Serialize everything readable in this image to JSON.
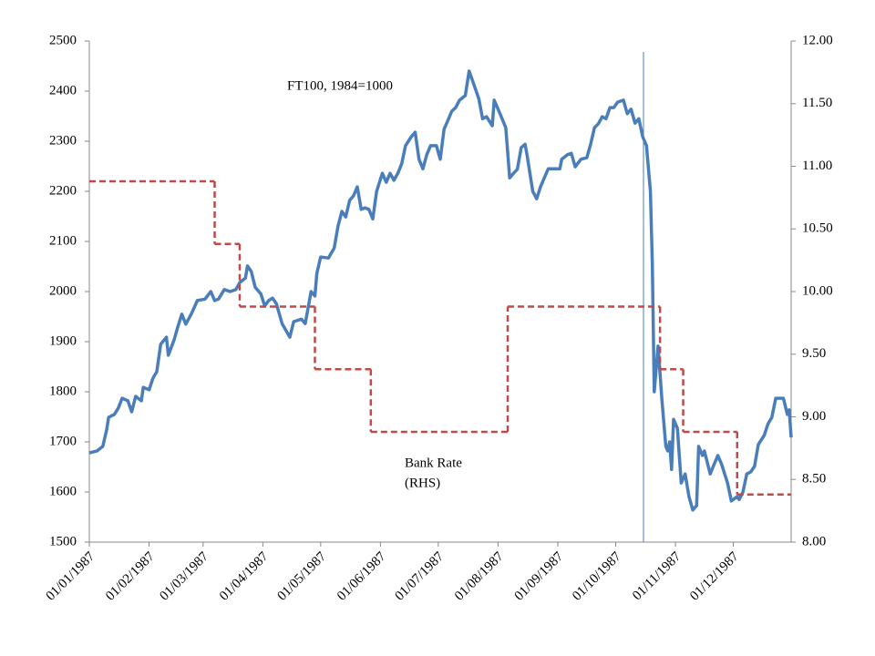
{
  "chart_data": {
    "type": "line",
    "annotations": [
      "FT100, 1984=1000",
      "Bank Rate",
      "(RHS)"
    ],
    "xlim": [
      "01/01/1987",
      "31/12/1987"
    ],
    "xticks": [
      "01/01/1987",
      "01/02/1987",
      "01/03/1987",
      "01/04/1987",
      "01/05/1987",
      "01/06/1987",
      "01/07/1987",
      "01/08/1987",
      "01/09/1987",
      "01/10/1987",
      "01/11/1987",
      "01/12/1987"
    ],
    "ylim": [
      1500,
      2500
    ],
    "yticks": [
      1500,
      1600,
      1700,
      1800,
      1900,
      2000,
      2100,
      2200,
      2300,
      2400,
      2500
    ],
    "y2lim": [
      8,
      12
    ],
    "y2ticks": [
      {
        "value": 8,
        "label": "8.00"
      },
      {
        "value": 8.5,
        "label": "8.50"
      },
      {
        "value": 9,
        "label": "9.00"
      },
      {
        "value": 9.5,
        "label": "9.50"
      },
      {
        "value": 10,
        "label": "10.00"
      },
      {
        "value": 10.5,
        "label": "10.50"
      },
      {
        "value": 11,
        "label": "11.00"
      },
      {
        "value": 11.5,
        "label": "11.50"
      },
      {
        "value": 12,
        "label": "12.00"
      }
    ],
    "series": [
      {
        "color": "#4a7ebb",
        "x": [
          "01/01/1987",
          "05/01/1987",
          "08/01/1987",
          "10/01/1987",
          "11/01/1987",
          "14/01/1987",
          "16/01/1987",
          "18/01/1987",
          "21/01/1987",
          "23/01/1987",
          "25/01/1987",
          "28/01/1987",
          "29/01/1987",
          "01/02/1987",
          "03/02/1987",
          "05/02/1987",
          "07/02/1987",
          "10/02/1987",
          "11/02/1987",
          "14/02/1987",
          "16/02/1987",
          "18/02/1987",
          "20/02/1987",
          "23/02/1987",
          "26/02/1987",
          "02/03/1987",
          "05/03/1987",
          "07/03/1987",
          "09/03/1987",
          "12/03/1987",
          "15/03/1987",
          "18/03/1987",
          "20/03/1987",
          "23/03/1987",
          "24/03/1987",
          "26/03/1987",
          "28/03/1987",
          "31/03/1987",
          "02/04/1987",
          "04/04/1987",
          "06/04/1987",
          "08/04/1987",
          "11/04/1987",
          "15/04/1987",
          "17/04/1987",
          "21/04/1987",
          "23/04/1987",
          "26/04/1987",
          "28/04/1987",
          "29/04/1987",
          "01/05/1987",
          "05/05/1987",
          "08/05/1987",
          "10/05/1987",
          "12/05/1987",
          "14/05/1987",
          "16/05/1987",
          "18/05/1987",
          "20/05/1987",
          "22/05/1987",
          "24/05/1987",
          "26/05/1987",
          "28/05/1987",
          "30/05/1987",
          "02/06/1987",
          "04/06/1987",
          "06/06/1987",
          "08/06/1987",
          "10/06/1987",
          "12/06/1987",
          "14/06/1987",
          "17/06/1987",
          "19/06/1987",
          "21/06/1987",
          "23/06/1987",
          "25/06/1987",
          "27/06/1987",
          "30/06/1987",
          "02/07/1987",
          "04/07/1987",
          "06/07/1987",
          "08/07/1987",
          "10/07/1987",
          "12/07/1987",
          "15/07/1987",
          "17/07/1987",
          "19/07/1987",
          "22/07/1987",
          "24/07/1987",
          "26/07/1987",
          "29/07/1987",
          "30/07/1987",
          "02/08/1987",
          "05/08/1987",
          "07/08/1987",
          "09/08/1987",
          "11/08/1987",
          "13/08/1987",
          "15/08/1987",
          "16/08/1987",
          "19/08/1987",
          "21/08/1987",
          "23/08/1987",
          "25/08/1987",
          "27/08/1987",
          "30/08/1987",
          "02/09/1987",
          "03/09/1987",
          "06/09/1987",
          "08/09/1987",
          "10/09/1987",
          "13/09/1987",
          "16/09/1987",
          "18/09/1987",
          "20/09/1987",
          "22/09/1987",
          "24/09/1987",
          "26/09/1987",
          "28/09/1987",
          "30/09/1987",
          "02/10/1987",
          "05/10/1987",
          "07/10/1987",
          "09/10/1987",
          "11/10/1987",
          "13/10/1987",
          "15/10/1987",
          "17/10/1987",
          "19/10/1987",
          "20/10/1987",
          "21/10/1987",
          "23/10/1987",
          "25/10/1987",
          "27/10/1987",
          "28/10/1987",
          "29/10/1987",
          "30/10/1987",
          "31/10/1987",
          "02/11/1987",
          "04/11/1987",
          "06/11/1987",
          "08/11/1987",
          "10/11/1987",
          "12/11/1987",
          "13/11/1987",
          "15/11/1987",
          "16/11/1987",
          "19/11/1987",
          "21/11/1987",
          "23/11/1987",
          "25/11/1987",
          "28/11/1987",
          "30/11/1987",
          "03/12/1987",
          "04/12/1987",
          "06/12/1987",
          "08/12/1987",
          "10/12/1987",
          "12/12/1987",
          "14/12/1987",
          "17/12/1987",
          "19/12/1987",
          "21/12/1987",
          "23/12/1987",
          "27/12/1987",
          "29/12/1987",
          "30/12/1987",
          "31/12/1987"
        ],
        "values": [
          1678,
          1682,
          1691,
          1724,
          1749,
          1755,
          1767,
          1787,
          1782,
          1760,
          1791,
          1782,
          1809,
          1804,
          1827,
          1840,
          1895,
          1909,
          1873,
          1904,
          1931,
          1955,
          1935,
          1956,
          1982,
          1985,
          2000,
          1982,
          1985,
          2004,
          2000,
          2004,
          2018,
          2027,
          2051,
          2040,
          2009,
          1995,
          1971,
          1982,
          1987,
          1976,
          1936,
          1909,
          1940,
          1945,
          1936,
          2000,
          1991,
          2036,
          2069,
          2067,
          2087,
          2131,
          2160,
          2149,
          2182,
          2191,
          2209,
          2164,
          2167,
          2164,
          2145,
          2200,
          2236,
          2218,
          2236,
          2222,
          2236,
          2255,
          2291,
          2309,
          2318,
          2264,
          2245,
          2273,
          2291,
          2291,
          2264,
          2324,
          2342,
          2360,
          2367,
          2382,
          2391,
          2440,
          2418,
          2385,
          2345,
          2349,
          2331,
          2382,
          2355,
          2327,
          2227,
          2236,
          2244,
          2287,
          2294,
          2273,
          2200,
          2185,
          2209,
          2227,
          2245,
          2245,
          2245,
          2264,
          2273,
          2276,
          2249,
          2264,
          2267,
          2294,
          2327,
          2335,
          2349,
          2345,
          2367,
          2367,
          2378,
          2382,
          2355,
          2364,
          2336,
          2345,
          2309,
          2291,
          2200,
          2055,
          1800,
          1891,
          1782,
          1691,
          1682,
          1700,
          1645,
          1745,
          1727,
          1618,
          1636,
          1591,
          1564,
          1573,
          1691,
          1673,
          1682,
          1636,
          1655,
          1673,
          1655,
          1618,
          1582,
          1591,
          1585,
          1600,
          1636,
          1640,
          1651,
          1695,
          1713,
          1736,
          1749,
          1787,
          1787,
          1755,
          1764,
          1709
        ]
      },
      {
        "color": "#be4b48",
        "axis": "y2",
        "dashed": true,
        "x": [
          "01/01/1987",
          "07/03/1987",
          "20/03/1987",
          "28/04/1987",
          "27/05/1987",
          "06/08/1987",
          "24/10/1987",
          "05/11/1987",
          "03/12/1987"
        ],
        "values": [
          10.88,
          10.38,
          9.88,
          9.38,
          8.88,
          9.88,
          9.38,
          8.88,
          8.38
        ]
      }
    ]
  }
}
